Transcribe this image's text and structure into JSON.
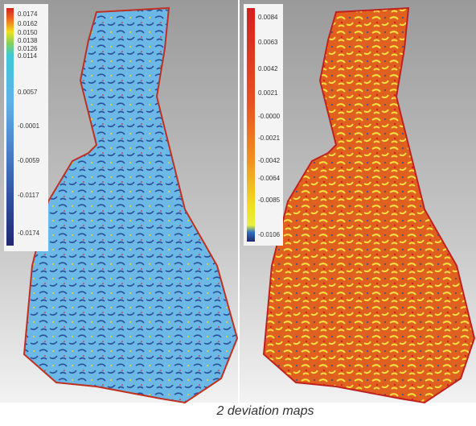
{
  "left_map": {
    "scale_labels": [
      "0.0174",
      "0.0162",
      "0.0150",
      "0.0138",
      "0.0126",
      "0.0114",
      "0.0057",
      "-0.0001",
      "-0.0059",
      "-0.0117",
      "-0.0174"
    ]
  },
  "right_map": {
    "scale_labels": [
      "0.0084",
      "0.0063",
      "0.0042",
      "0.0021",
      "-0.0000",
      "-0.0021",
      "-0.0042",
      "-0.0064",
      "-0.0085",
      "-0.0106"
    ]
  },
  "caption": "2 deviation maps"
}
